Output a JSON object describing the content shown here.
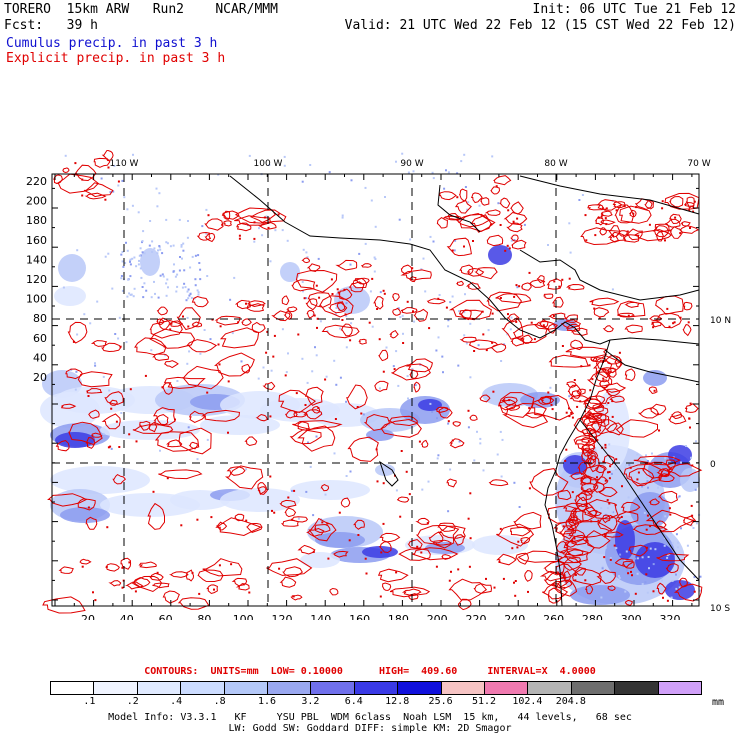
{
  "header": {
    "title": "TORERO  15km ARW   Run2    NCAR/MMM",
    "init": "Init: 06 UTC Tue 21 Feb 12",
    "fcst": "Fcst:   39 h",
    "valid": "Valid: 21 UTC Wed 22 Feb 12 (15 CST Wed 22 Feb 12)",
    "field_cumulus": "Cumulus precip. in past 3 h",
    "field_explicit": "Explicit precip. in past 3 h",
    "colors": {
      "cumulus": "#1010d0",
      "explicit": "#e00000"
    }
  },
  "map": {
    "lon_labels": [
      "110 W",
      "100 W",
      "90 W",
      "80 W",
      "70 W"
    ],
    "lat_labels": [
      "10 N",
      "0",
      "10 S"
    ],
    "y_ticks": [
      "220",
      "200",
      "180",
      "160",
      "140",
      "120",
      "100",
      "80",
      "60",
      "40",
      "20"
    ],
    "x_ticks": [
      "20",
      "40",
      "60",
      "80",
      "100",
      "120",
      "140",
      "160",
      "180",
      "200",
      "220",
      "240",
      "260",
      "280",
      "300",
      "320"
    ]
  },
  "contour_info": "CONTOURS:  UNITS=mm  LOW= 0.10000      HIGH=  409.60     INTERVAL=X  4.0000",
  "colorbar": {
    "unit": "mm",
    "levels": [
      ".1",
      ".2",
      ".4",
      ".8",
      "1.6",
      "3.2",
      "6.4",
      "12.8",
      "25.6",
      "51.2",
      "102.4",
      "204.8"
    ],
    "colors": [
      "#ffffff",
      "#f0f4ff",
      "#e0eaff",
      "#ccdcff",
      "#b4c8f8",
      "#9aa8f0",
      "#7070ec",
      "#3a3ae6",
      "#1010dc",
      "#f6c4c4",
      "#f07ab0",
      "#b4b4b4",
      "#6e6e6e",
      "#343434",
      "#d0a0f8"
    ]
  },
  "model_info": {
    "line1": "Model Info: V3.3.1   KF     YSU PBL  WDM 6class  Noah LSM  15 km,   44 levels,   68 sec",
    "line2": "LW: Godd SW: Goddard DIFF: simple KM: 2D Smagor"
  }
}
